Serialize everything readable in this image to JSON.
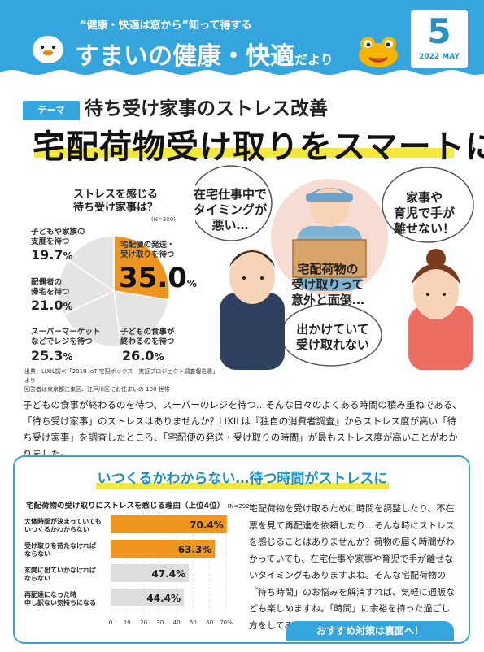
{
  "header": {
    "subtitle": "“健康・快適は窓から”知って得する",
    "title_main": "すまいの健康・快適",
    "title_suffix": "だより",
    "issue_number": "5",
    "issue_date": "2022 MAY",
    "colors": {
      "brand": "#34a6dd",
      "accent_yellow": "#f4e83c",
      "accent_orange": "#f0961e"
    }
  },
  "theme": {
    "tag": "テーマ",
    "subtitle": "待ち受け家事のストレス改善",
    "title": "宅配荷物受け取りをスマートに"
  },
  "pie_chart": {
    "title_line1": "ストレスを感じる",
    "title_line2": "待ち受け家事は？",
    "n_label": "(N=300)",
    "slices": [
      {
        "label_line1": "宅配便の発送・",
        "label_line2": "受け取りを待つ",
        "value": 35.0,
        "display": "35.0"
      },
      {
        "label_line1": "子どもの食事が",
        "label_line2": "終わるのを待つ",
        "value": 26.0,
        "display": "26.0"
      },
      {
        "label_line1": "スーパーマーケット",
        "label_line2": "などでレジを待つ",
        "value": 25.3,
        "display": "25.3"
      },
      {
        "label_line1": "配偶者の",
        "label_line2": "帰宅を待つ",
        "value": 21.0,
        "display": "21.0"
      },
      {
        "label_line1": "子どもや家族の",
        "label_line2": "支度を待つ",
        "value": 19.7,
        "display": "19.7"
      }
    ],
    "pct_sign": "%",
    "source_line1": "出典：LIXIL調べ「2019 IoT 宅配ボックス　実証プロジェクト調査報告書」より",
    "source_line2": "回答者は東京都江東区、江戸川区にお住まいの 100 世帯"
  },
  "bubbles": {
    "left_line1": "在宅仕事中で",
    "left_line2": "タイミングが",
    "left_line3": "悪い…",
    "right_line1": "家事や",
    "right_line2": "育児で手が",
    "right_line3": "離せない！",
    "center_line1": "宅配荷物の",
    "center_line2": "受け取りって",
    "center_line3": "意外と面倒…",
    "bottom_line1": "出かけていて",
    "bottom_line2": "受け取れない"
  },
  "intro": {
    "text": "子どもの食事が終わるのを待つ、スーパーのレジを待つ…そんな日々のよくある時間の積み重ねである、「待ち受け家事」のストレスはありませんか？LIXILは『独自の消費者調査』からストレス度が高い「待ち受け家事」を調査したところ、「宅配便の発送・受け取りの時間」が最もストレス度が高いことがわかりました。"
  },
  "stress_section": {
    "title": "いつくるかわからない…待つ時間がストレスに",
    "bar_title": "宅配荷物の受け取りにストレスを感じる理由（上位4位）",
    "bar_n": "(N=292)",
    "body": "宅配荷物を受け取るために時間を調整したり、不在票を見て再配達を依頼したり…そんな時にストレスを感じることはありませんか？荷物の届く時間がわかっていても、在宅仕事や家事や育児で手が離せないタイミングもありますよね。そんな宅配荷物の「待ち時間」のお悩みを解消すれば、気軽に通販なども楽しめますね。「時間」に余裕を持った過ごし方をしてみませんか？",
    "footer_tab": "おすすめ対策は裏面へ！"
  },
  "chart_data": [
    {
      "type": "pie",
      "title": "ストレスを感じる待ち受け家事は？",
      "categories": [
        "宅配便の発送・受け取りを待つ",
        "子どもの食事が終わるのを待つ",
        "スーパーマーケットなどでレジを待つ",
        "配偶者の帰宅を待つ",
        "子どもや家族の支度を待つ"
      ],
      "values": [
        35.0,
        26.0,
        25.3,
        21.0,
        19.7
      ],
      "highlight_color": "#f0961e",
      "other_color": "#e4e4e4"
    },
    {
      "type": "bar",
      "orientation": "horizontal",
      "title": "宅配荷物の受け取りにストレスを感じる理由（上位4位）",
      "categories": [
        {
          "line1": "大体時間が決まっていても",
          "line2": "いつくるかわからない"
        },
        {
          "line1": "受け取りを待たなければ",
          "line2": "ならない"
        },
        {
          "line1": "玄関に出ていかなければ",
          "line2": "ならない"
        },
        {
          "line1": "再配達になった時",
          "line2": "申し訳ない気持ちになる"
        }
      ],
      "values": [
        70.4,
        63.3,
        47.4,
        44.4
      ],
      "colors": [
        "#f0961e",
        "#f0961e",
        "#dddddd",
        "#dddddd"
      ],
      "value_labels": [
        "70.4%",
        "63.3%",
        "47.4%",
        "44.4%"
      ],
      "xlim": [
        0,
        70
      ],
      "xticks": [
        "0",
        "10",
        "20",
        "30",
        "40",
        "50",
        "60",
        "70%"
      ]
    }
  ]
}
